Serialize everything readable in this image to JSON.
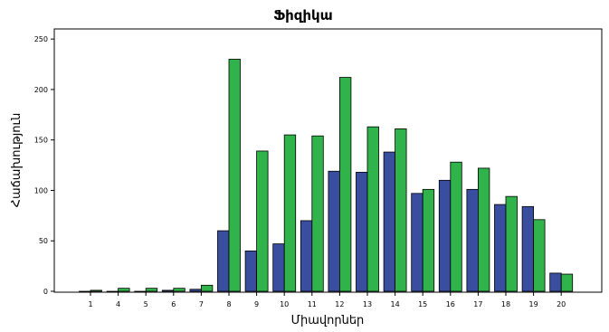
{
  "chart_data": {
    "type": "bar",
    "title": "Ֆիզիկա",
    "xlabel": "Միավորներ",
    "ylabel": "Հաճախություն",
    "categories": [
      "1",
      "4",
      "5",
      "6",
      "7",
      "8",
      "9",
      "10",
      "11",
      "12",
      "13",
      "14",
      "15",
      "16",
      "17",
      "18",
      "19",
      "20"
    ],
    "series": [
      {
        "values": [
          0,
          0,
          0,
          1,
          2,
          60,
          40,
          47,
          70,
          119,
          118,
          138,
          97,
          110,
          101,
          86,
          84,
          18
        ]
      },
      {
        "values": [
          1,
          3,
          3,
          3,
          6,
          230,
          139,
          155,
          154,
          212,
          163,
          161,
          101,
          128,
          122,
          94,
          71,
          17
        ]
      }
    ],
    "ylim": [
      0,
      260
    ],
    "yticks": [
      0,
      50,
      100,
      150,
      200,
      250
    ],
    "grid": false,
    "colors": [
      "#3a4ea0",
      "#2fb34a"
    ]
  }
}
